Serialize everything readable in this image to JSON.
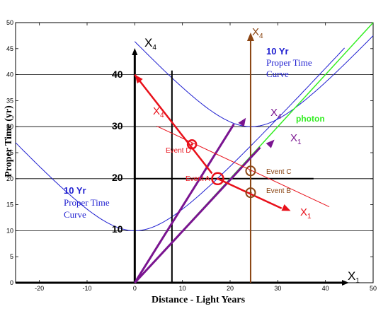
{
  "figure": {
    "xlabel": "Distance - Light Years",
    "ylabel": "Proper Time (yr)",
    "xlim": [
      -25,
      50
    ],
    "ylim": [
      0,
      50
    ],
    "frame_xticks": [
      "-20",
      "-10",
      "0",
      "10",
      "20",
      "30",
      "40",
      "50"
    ],
    "frame_yticks": [
      "0",
      "5",
      "10",
      "15",
      "20",
      "25",
      "30",
      "35",
      "40",
      "45",
      "50"
    ],
    "big_yticks": [
      "10",
      "20",
      "30",
      "40"
    ],
    "grid": "horizontal lines at 10, 20, 30, 40"
  },
  "labels": {
    "x4_main": "X4",
    "x4_brown": "X4",
    "x1_axis": "X1",
    "x4_red": "X4",
    "x1_red": "X1",
    "x4_purple": "X4",
    "x1_purple": "X1",
    "photon": "photon",
    "curve_right_1": "10 Yr",
    "curve_right_2": "Proper Time",
    "curve_right_3": "Curve",
    "curve_left_1": "10 Yr",
    "curve_left_2": "Proper Time",
    "curve_left_3": "Curve",
    "event_a": "Event A",
    "event_b": "Event B",
    "event_c": "Event C",
    "event_d": "Event D"
  },
  "colors": {
    "red": "#e8101a",
    "purple": "#7a1490",
    "brown": "#8b4513",
    "green": "#33ee22",
    "blue": "#1f1fd0",
    "black": "#000000"
  },
  "events": {
    "A": [
      17.4,
      20
    ],
    "B": [
      24.3,
      17.3
    ],
    "C": [
      24.3,
      21.5
    ],
    "D": [
      12,
      26.6
    ]
  }
}
